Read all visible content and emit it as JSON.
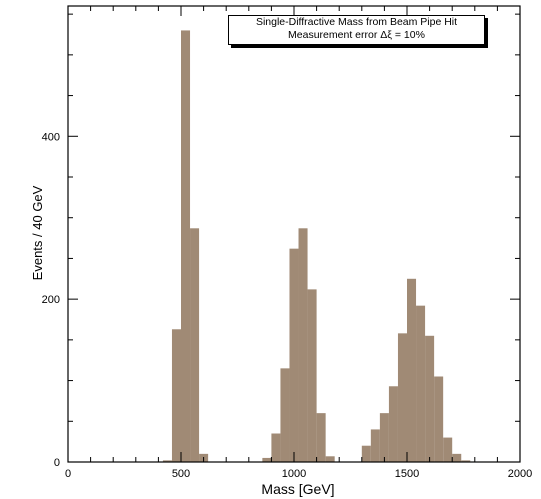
{
  "chart_data": {
    "type": "bar",
    "title": "",
    "xlabel": "Mass  [GeV]",
    "ylabel": "Events / 40 GeV",
    "xlim": [
      0,
      2000
    ],
    "ylim": [
      0,
      560
    ],
    "xticks": [
      0,
      500,
      1000,
      1500,
      2000
    ],
    "yticks": [
      0,
      200,
      400
    ],
    "bin_width": 40,
    "annotation_lines": [
      "Single-Diffractive Mass from Beam Pipe Hit",
      "Measurement error Δξ = 10%"
    ],
    "bar_color": "#a08a75",
    "bins": [
      {
        "x": 420,
        "y": 2
      },
      {
        "x": 460,
        "y": 163
      },
      {
        "x": 500,
        "y": 530
      },
      {
        "x": 540,
        "y": 287
      },
      {
        "x": 580,
        "y": 10
      },
      {
        "x": 860,
        "y": 5
      },
      {
        "x": 900,
        "y": 35
      },
      {
        "x": 940,
        "y": 115
      },
      {
        "x": 980,
        "y": 262
      },
      {
        "x": 1020,
        "y": 287
      },
      {
        "x": 1060,
        "y": 212
      },
      {
        "x": 1100,
        "y": 60
      },
      {
        "x": 1140,
        "y": 7
      },
      {
        "x": 1300,
        "y": 20
      },
      {
        "x": 1340,
        "y": 40
      },
      {
        "x": 1380,
        "y": 60
      },
      {
        "x": 1420,
        "y": 93
      },
      {
        "x": 1460,
        "y": 158
      },
      {
        "x": 1500,
        "y": 225
      },
      {
        "x": 1540,
        "y": 192
      },
      {
        "x": 1580,
        "y": 155
      },
      {
        "x": 1620,
        "y": 105
      },
      {
        "x": 1660,
        "y": 30
      },
      {
        "x": 1700,
        "y": 10
      },
      {
        "x": 1740,
        "y": 2
      }
    ]
  }
}
